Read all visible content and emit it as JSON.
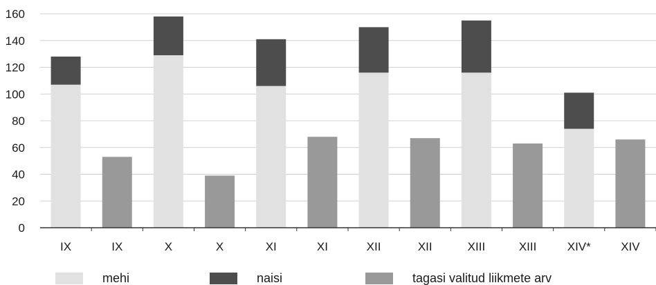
{
  "chart_data": {
    "type": "bar",
    "categories": [
      "IX",
      "IX",
      "X",
      "X",
      "XI",
      "XI",
      "XII",
      "XII",
      "XIII",
      "XIII",
      "XIV*",
      "XIV"
    ],
    "series": [
      {
        "name": "mehi",
        "color": "#e1e1e1",
        "stack": "gender",
        "values": [
          107,
          null,
          129,
          null,
          106,
          null,
          116,
          null,
          116,
          null,
          74,
          null
        ]
      },
      {
        "name": "naisi",
        "color": "#4d4d4d",
        "stack": "gender",
        "values": [
          21,
          null,
          29,
          null,
          35,
          null,
          34,
          null,
          39,
          null,
          27,
          null
        ]
      },
      {
        "name": "tagasi valitud liikmete arv",
        "color": "#999999",
        "stack": "reelected",
        "values": [
          null,
          53,
          null,
          39,
          null,
          68,
          null,
          67,
          null,
          63,
          null,
          66
        ]
      }
    ],
    "yticks": [
      0,
      20,
      40,
      60,
      80,
      100,
      120,
      140,
      160
    ],
    "ylim": [
      0,
      160
    ],
    "grid": true,
    "legend_position": "bottom",
    "title": "",
    "xlabel": "",
    "ylabel": ""
  }
}
